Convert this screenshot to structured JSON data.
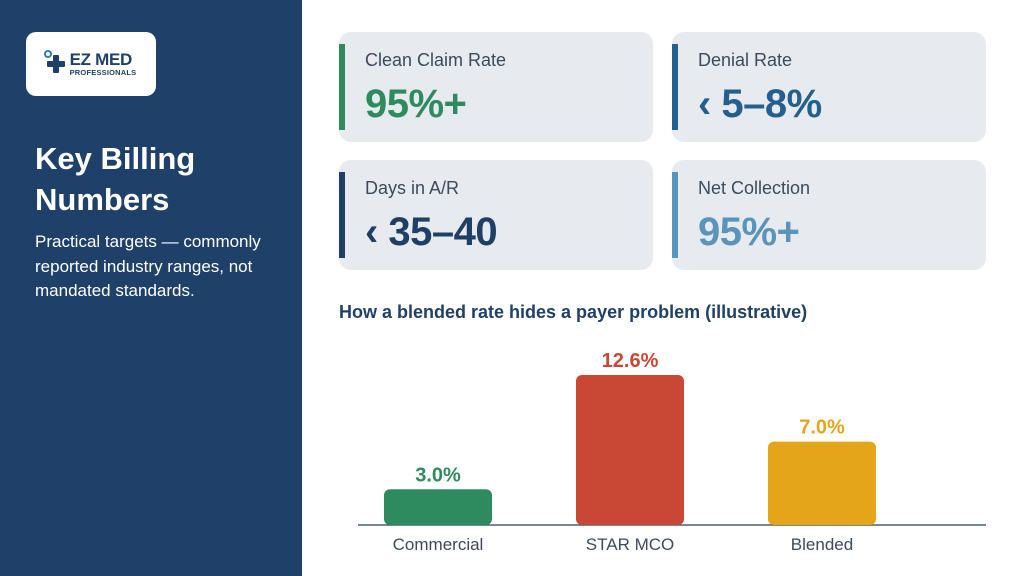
{
  "logo": {
    "title": "EZ MED",
    "subtitle": "PROFESSIONALS"
  },
  "sidebar": {
    "title": "Key Billing Numbers",
    "description": "Practical targets — commonly reported industry ranges, not mandated standards."
  },
  "metrics": [
    {
      "label": "Clean Claim Rate",
      "value": "95%+",
      "color": "#2e8b5f"
    },
    {
      "label": "Denial Rate",
      "value": "‹ 5–8%",
      "color": "#23608f"
    },
    {
      "label": "Days in A/R",
      "value": "‹ 35–40",
      "color": "#1f3f66"
    },
    {
      "label": "Net Collection",
      "value": "95%+",
      "color": "#5a93bb"
    }
  ],
  "chart_title": "How a blended rate hides a payer problem (illustrative)",
  "chart_data": {
    "type": "bar",
    "categories": [
      "Commercial",
      "STAR MCO",
      "Blended"
    ],
    "values": [
      3.0,
      12.6,
      7.0
    ],
    "value_labels": [
      "3.0%",
      "12.6%",
      "7.0%"
    ],
    "colors": [
      "#2e8b5f",
      "#c94735",
      "#e5a51a"
    ],
    "ylim": [
      0,
      12.6
    ],
    "grid": false,
    "legend": "none"
  }
}
